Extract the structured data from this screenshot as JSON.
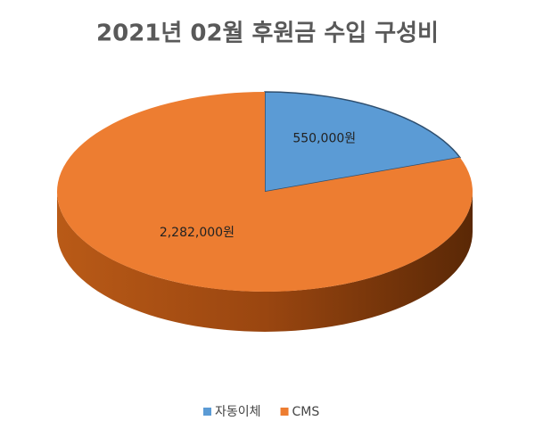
{
  "chart_data": {
    "type": "pie",
    "title": "2021년 02월 후원금 수입 구성비",
    "categories": [
      "자동이체",
      "CMS"
    ],
    "values": [
      550000,
      2282000
    ],
    "value_labels": [
      "550,000원",
      "2,282,000원"
    ],
    "colors": [
      "#5b9bd5",
      "#ed7d31"
    ],
    "legend": "bottom"
  }
}
